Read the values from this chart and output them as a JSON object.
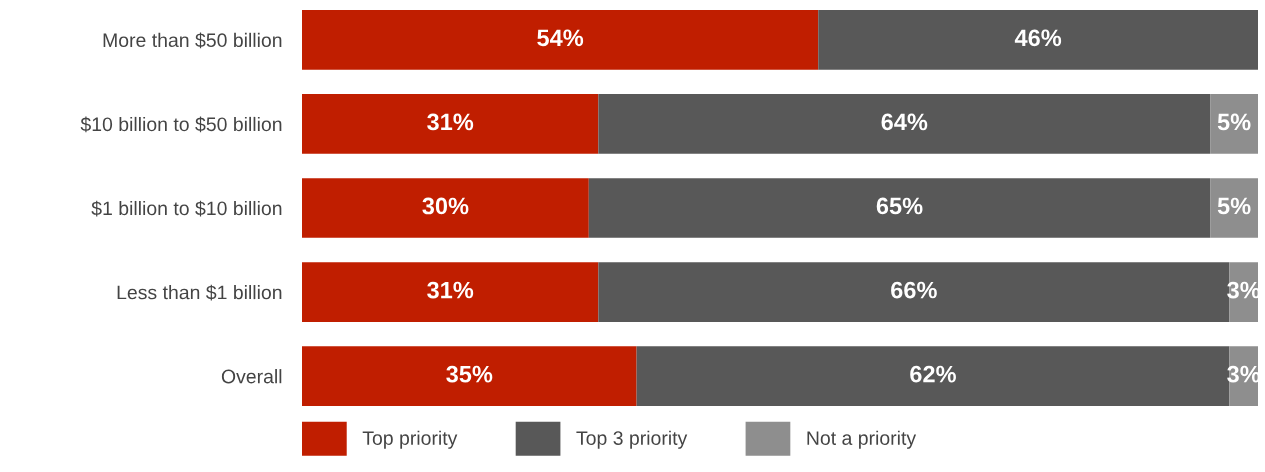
{
  "chart_data": {
    "type": "bar",
    "orientation": "horizontal",
    "stacked": true,
    "categories": [
      "More than $50 billion",
      "$10 billion to $50 billion",
      "$1 billion to $10 billion",
      "Less than $1 billion",
      "Overall"
    ],
    "series": [
      {
        "name": "Top priority",
        "color": "#c01e00",
        "values": [
          54,
          31,
          30,
          31,
          35
        ],
        "value_labels": [
          "54%",
          "31%",
          "30%",
          "31%",
          "35%"
        ]
      },
      {
        "name": "Top 3 priority",
        "color": "#585858",
        "values": [
          46,
          64,
          65,
          66,
          62
        ],
        "value_labels": [
          "46%",
          "64%",
          "65%",
          "66%",
          "62%"
        ]
      },
      {
        "name": "Not a priority",
        "color": "#8e8e8e",
        "values": [
          null,
          5,
          5,
          3,
          3
        ],
        "value_labels": [
          null,
          "5%",
          "5%",
          "3%",
          "3%"
        ]
      }
    ],
    "tick_labels": "y",
    "legend": "bottom"
  }
}
